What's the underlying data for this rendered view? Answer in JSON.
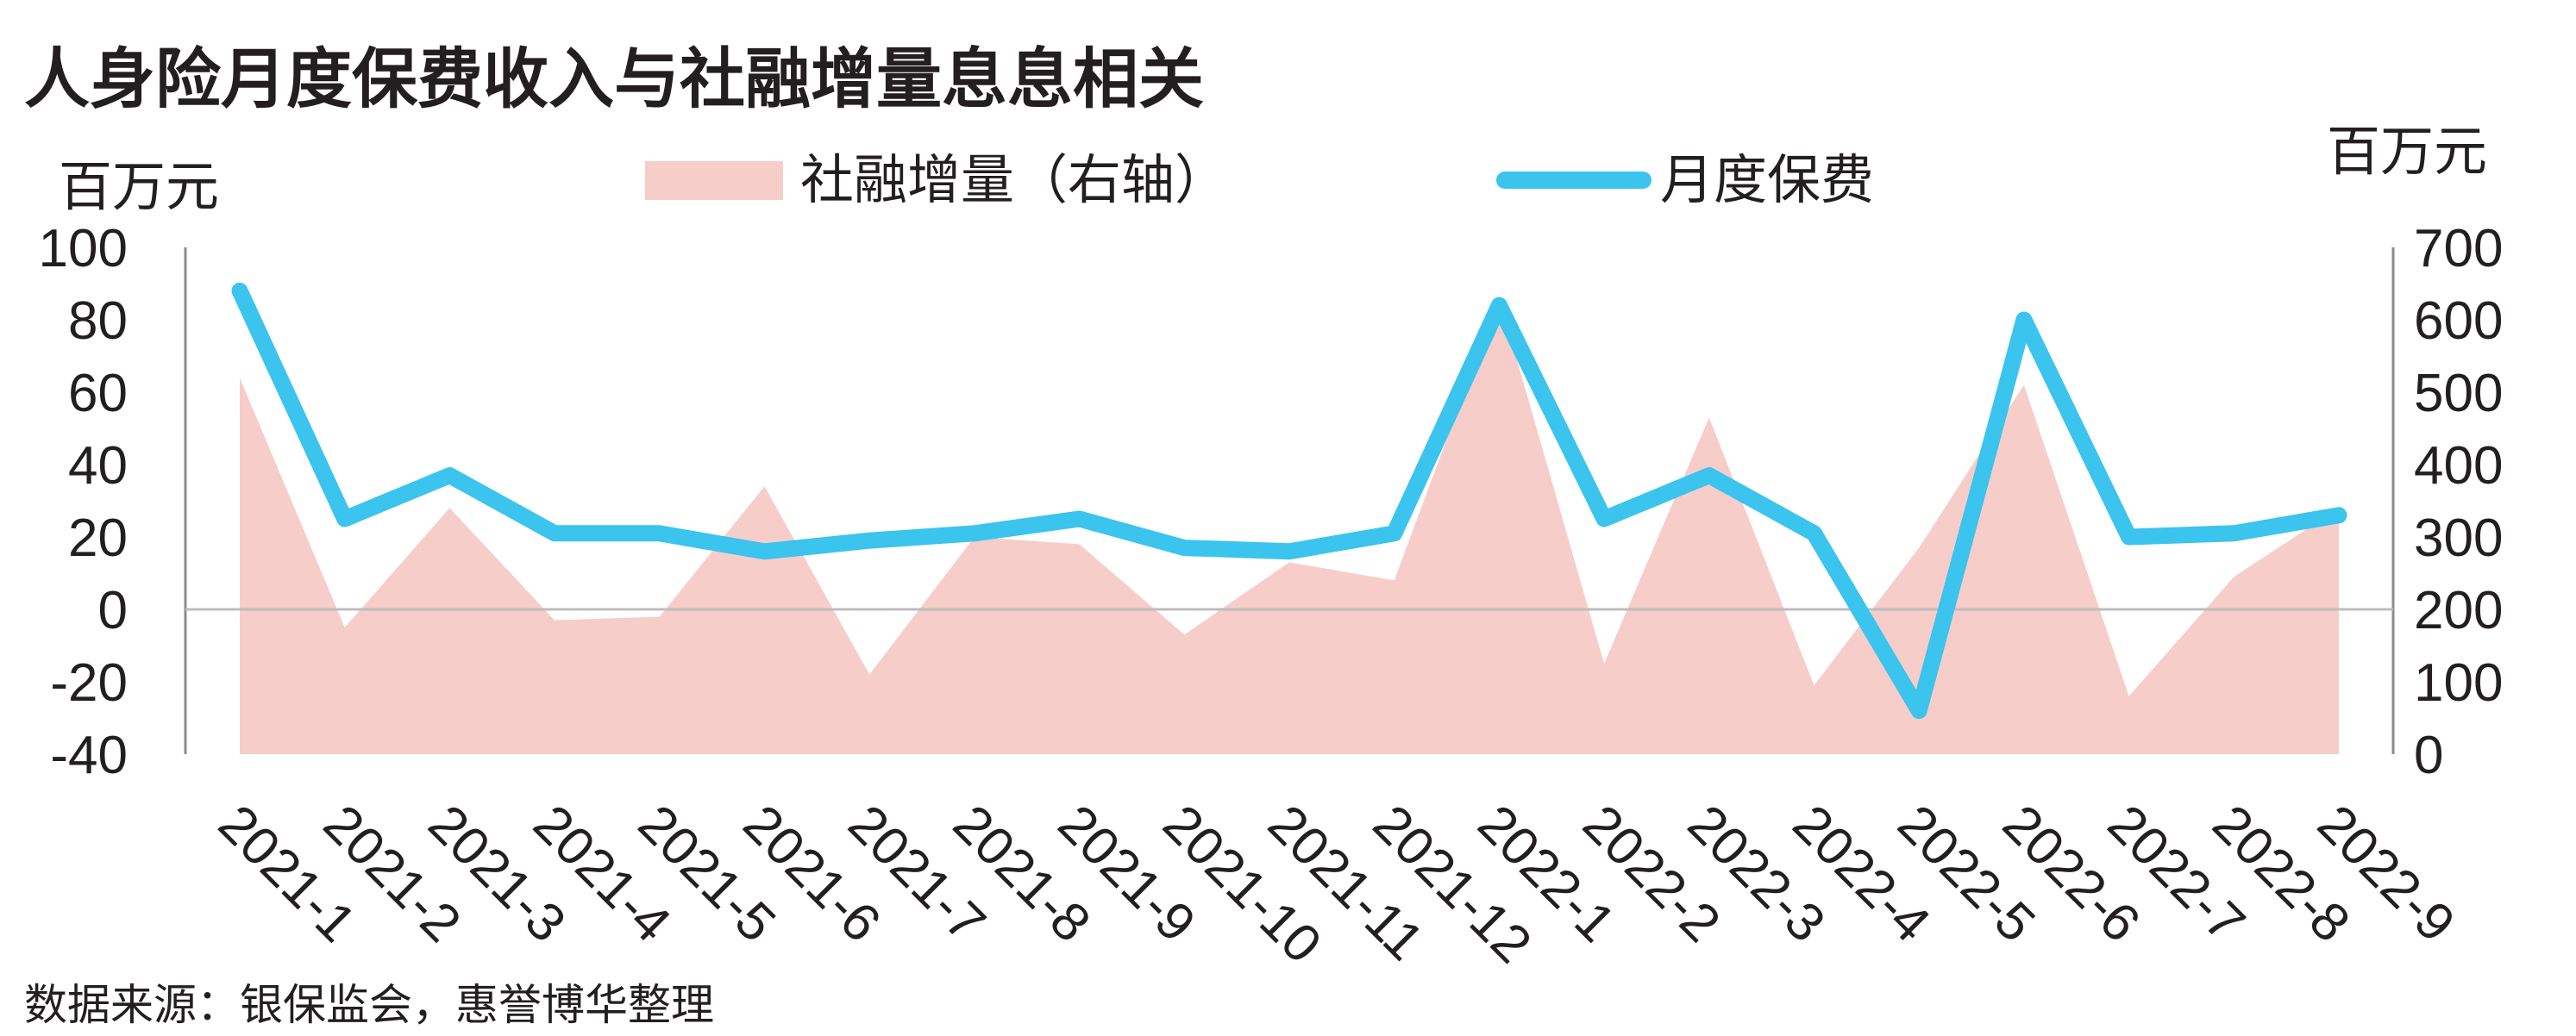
{
  "chart_data": {
    "type": "line",
    "title": "人身险月度保费收入与社融增量息息相关",
    "source": "数据来源：银保监会，惠誉博华整理",
    "left_axis": {
      "unit": "百万元",
      "ylim": [
        -40,
        100
      ],
      "ticks": [
        "100",
        "80",
        "60",
        "40",
        "20",
        "0",
        "-20",
        "-40"
      ]
    },
    "right_axis": {
      "unit": "百万元",
      "ylim": [
        0,
        700
      ],
      "ticks": [
        "700",
        "600",
        "500",
        "400",
        "300",
        "200",
        "100",
        "0"
      ]
    },
    "categories": [
      "2021-1",
      "2021-2",
      "2021-3",
      "2021-4",
      "2021-5",
      "2021-6",
      "2021-7",
      "2021-8",
      "2021-9",
      "2021-10",
      "2021-11",
      "2021-12",
      "2022-1",
      "2022-2",
      "2022-3",
      "2022-4",
      "2022-5",
      "2022-6",
      "2022-7",
      "2022-8",
      "2022-9"
    ],
    "series": [
      {
        "name": "社融增量（右轴）",
        "type": "area",
        "axis": "right",
        "color": "#f7cdc9",
        "values": [
          520,
          175,
          340,
          185,
          190,
          370,
          110,
          300,
          290,
          165,
          265,
          240,
          630,
          125,
          465,
          95,
          285,
          510,
          80,
          245,
          340
        ]
      },
      {
        "name": "月度保费",
        "type": "line",
        "axis": "left",
        "color": "#3ac4ee",
        "values": [
          88,
          25,
          37,
          21,
          21,
          16,
          19,
          21,
          25,
          17,
          16,
          21,
          84,
          25,
          37,
          21,
          -28,
          80,
          20,
          21,
          26
        ]
      }
    ],
    "legend": "top-center",
    "grid": false
  }
}
